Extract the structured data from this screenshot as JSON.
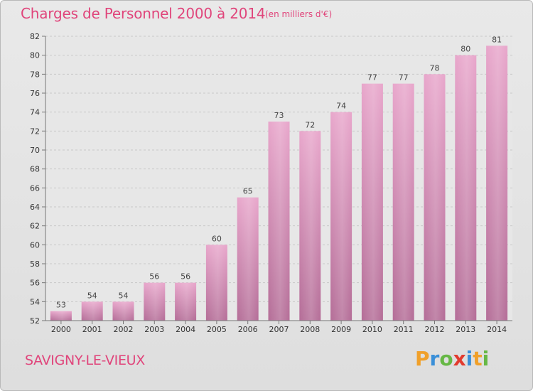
{
  "chart_data": {
    "type": "bar",
    "title": "Charges de Personnel 2000 à 2014",
    "subtitle": "(en milliers d'€)",
    "categories": [
      "2000",
      "2001",
      "2002",
      "2003",
      "2004",
      "2005",
      "2006",
      "2007",
      "2008",
      "2009",
      "2010",
      "2011",
      "2012",
      "2013",
      "2014"
    ],
    "values": [
      53,
      54,
      54,
      56,
      56,
      60,
      65,
      73,
      72,
      74,
      77,
      77,
      78,
      80,
      81
    ],
    "ylim": [
      52,
      82
    ],
    "yticks": [
      52,
      54,
      56,
      58,
      60,
      62,
      64,
      66,
      68,
      70,
      72,
      74,
      76,
      78,
      80,
      82
    ],
    "grid": true,
    "bar_color": "#d88fb6",
    "xlabel": "",
    "ylabel": ""
  },
  "footer": {
    "commune": "SAVIGNY-LE-VIEUX",
    "logo_letters": [
      {
        "char": "P",
        "color": "#f0a02a"
      },
      {
        "char": "r",
        "color": "#3a8fd8"
      },
      {
        "char": "o",
        "color": "#66b845"
      },
      {
        "char": "x",
        "color": "#e23b2e"
      },
      {
        "char": "i",
        "color": "#3a8fd8"
      },
      {
        "char": "t",
        "color": "#f0a02a"
      },
      {
        "char": "i",
        "color": "#66b845"
      }
    ]
  }
}
